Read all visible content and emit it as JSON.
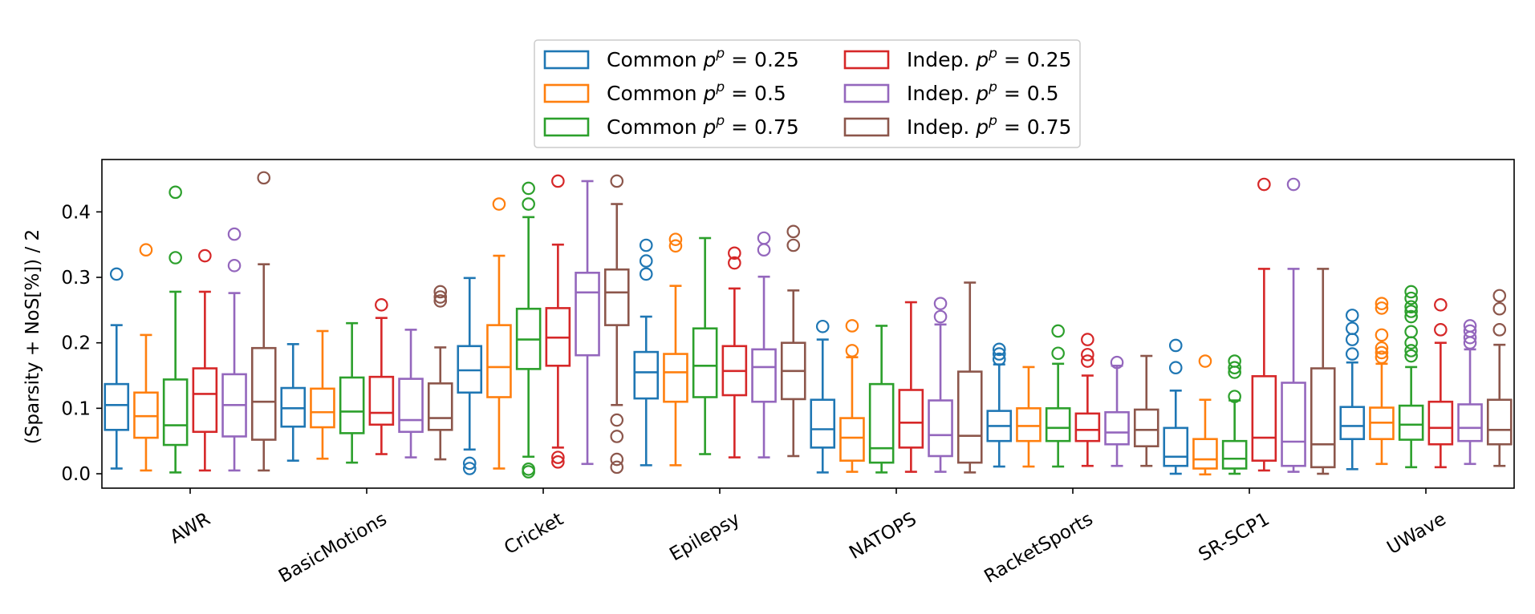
{
  "chart_data": {
    "type": "boxplot",
    "title": "",
    "xlabel": "",
    "ylabel": "(Sparsity + NoS[%]) / 2",
    "ylim": [
      -0.022,
      0.48
    ],
    "yticks": [
      0.0,
      0.1,
      0.2,
      0.3,
      0.4
    ],
    "ytick_labels": [
      "0.0",
      "0.1",
      "0.2",
      "0.3",
      "0.4"
    ],
    "legend_position": "upper center, outside top",
    "categories": [
      "AWR",
      "BasicMotions",
      "Cricket",
      "Epilepsy",
      "NATOPS",
      "RacketSports",
      "SR-SCP1",
      "UWave"
    ],
    "series": [
      {
        "name": "Common p^p = 0.25",
        "prefix": "Common",
        "pvalue": "0.25",
        "color": "#1f77b4",
        "boxes": [
          {
            "whislo": 0.008,
            "q1": 0.067,
            "med": 0.105,
            "q3": 0.137,
            "whishi": 0.227,
            "fliers": [
              0.305
            ]
          },
          {
            "whislo": 0.02,
            "q1": 0.072,
            "med": 0.1,
            "q3": 0.131,
            "whishi": 0.198,
            "fliers": []
          },
          {
            "whislo": 0.037,
            "q1": 0.124,
            "med": 0.158,
            "q3": 0.195,
            "whishi": 0.299,
            "fliers": [
              0.008,
              0.016
            ]
          },
          {
            "whislo": 0.013,
            "q1": 0.115,
            "med": 0.155,
            "q3": 0.186,
            "whishi": 0.24,
            "fliers": [
              0.305,
              0.325,
              0.349
            ]
          },
          {
            "whislo": 0.002,
            "q1": 0.04,
            "med": 0.068,
            "q3": 0.113,
            "whishi": 0.205,
            "fliers": [
              0.225
            ]
          },
          {
            "whislo": 0.011,
            "q1": 0.05,
            "med": 0.073,
            "q3": 0.096,
            "whishi": 0.167,
            "fliers": [
              0.175,
              0.183,
              0.19
            ]
          },
          {
            "whislo": 0.0,
            "q1": 0.012,
            "med": 0.026,
            "q3": 0.07,
            "whishi": 0.127,
            "fliers": [
              0.162,
              0.196
            ]
          },
          {
            "whislo": 0.007,
            "q1": 0.053,
            "med": 0.073,
            "q3": 0.102,
            "whishi": 0.17,
            "fliers": [
              0.183,
              0.205,
              0.222,
              0.242
            ]
          }
        ]
      },
      {
        "name": "Common p^p = 0.5",
        "prefix": "Common",
        "pvalue": "0.5",
        "color": "#ff7f0e",
        "boxes": [
          {
            "whislo": 0.005,
            "q1": 0.055,
            "med": 0.088,
            "q3": 0.124,
            "whishi": 0.212,
            "fliers": [
              0.342
            ]
          },
          {
            "whislo": 0.023,
            "q1": 0.071,
            "med": 0.094,
            "q3": 0.13,
            "whishi": 0.218,
            "fliers": []
          },
          {
            "whislo": 0.008,
            "q1": 0.117,
            "med": 0.163,
            "q3": 0.227,
            "whishi": 0.333,
            "fliers": [
              0.412
            ]
          },
          {
            "whislo": 0.013,
            "q1": 0.11,
            "med": 0.155,
            "q3": 0.183,
            "whishi": 0.287,
            "fliers": [
              0.348,
              0.358
            ]
          },
          {
            "whislo": 0.003,
            "q1": 0.02,
            "med": 0.055,
            "q3": 0.085,
            "whishi": 0.178,
            "fliers": [
              0.188,
              0.226
            ]
          },
          {
            "whislo": 0.011,
            "q1": 0.05,
            "med": 0.073,
            "q3": 0.1,
            "whishi": 0.163,
            "fliers": []
          },
          {
            "whislo": -0.001,
            "q1": 0.008,
            "med": 0.022,
            "q3": 0.053,
            "whishi": 0.113,
            "fliers": [
              0.172
            ]
          },
          {
            "whislo": 0.015,
            "q1": 0.053,
            "med": 0.078,
            "q3": 0.101,
            "whishi": 0.168,
            "fliers": [
              0.178,
              0.185,
              0.192,
              0.212,
              0.253,
              0.26
            ]
          }
        ]
      },
      {
        "name": "Common p^p = 0.75",
        "prefix": "Common",
        "pvalue": "0.75",
        "color": "#2ca02c",
        "boxes": [
          {
            "whislo": 0.002,
            "q1": 0.044,
            "med": 0.074,
            "q3": 0.144,
            "whishi": 0.278,
            "fliers": [
              0.33,
              0.43
            ]
          },
          {
            "whislo": 0.017,
            "q1": 0.062,
            "med": 0.095,
            "q3": 0.147,
            "whishi": 0.23,
            "fliers": []
          },
          {
            "whislo": 0.026,
            "q1": 0.16,
            "med": 0.205,
            "q3": 0.252,
            "whishi": 0.392,
            "fliers": [
              0.003,
              0.007,
              0.412,
              0.436
            ]
          },
          {
            "whislo": 0.03,
            "q1": 0.117,
            "med": 0.165,
            "q3": 0.222,
            "whishi": 0.36,
            "fliers": []
          },
          {
            "whislo": 0.002,
            "q1": 0.017,
            "med": 0.039,
            "q3": 0.137,
            "whishi": 0.226,
            "fliers": []
          },
          {
            "whislo": 0.011,
            "q1": 0.05,
            "med": 0.07,
            "q3": 0.1,
            "whishi": 0.168,
            "fliers": [
              0.184,
              0.218
            ]
          },
          {
            "whislo": 0.0,
            "q1": 0.008,
            "med": 0.023,
            "q3": 0.05,
            "whishi": 0.112,
            "fliers": [
              0.118,
              0.155,
              0.162,
              0.172
            ]
          },
          {
            "whislo": 0.01,
            "q1": 0.052,
            "med": 0.075,
            "q3": 0.104,
            "whishi": 0.163,
            "fliers": [
              0.18,
              0.188,
              0.2,
              0.217,
              0.24,
              0.248,
              0.255,
              0.268,
              0.278
            ]
          }
        ]
      },
      {
        "name": "Indep. p^p = 0.25",
        "prefix": "Indep.",
        "pvalue": "0.25",
        "color": "#d62728",
        "boxes": [
          {
            "whislo": 0.005,
            "q1": 0.064,
            "med": 0.122,
            "q3": 0.161,
            "whishi": 0.278,
            "fliers": [
              0.333
            ]
          },
          {
            "whislo": 0.03,
            "q1": 0.075,
            "med": 0.093,
            "q3": 0.148,
            "whishi": 0.238,
            "fliers": [
              0.258
            ]
          },
          {
            "whislo": 0.04,
            "q1": 0.165,
            "med": 0.208,
            "q3": 0.253,
            "whishi": 0.35,
            "fliers": [
              0.018,
              0.025,
              0.447
            ]
          },
          {
            "whislo": 0.025,
            "q1": 0.12,
            "med": 0.157,
            "q3": 0.195,
            "whishi": 0.283,
            "fliers": [
              0.322,
              0.337
            ]
          },
          {
            "whislo": 0.003,
            "q1": 0.04,
            "med": 0.078,
            "q3": 0.128,
            "whishi": 0.262,
            "fliers": []
          },
          {
            "whislo": 0.012,
            "q1": 0.05,
            "med": 0.067,
            "q3": 0.092,
            "whishi": 0.15,
            "fliers": [
              0.172,
              0.182,
              0.205
            ]
          },
          {
            "whislo": 0.005,
            "q1": 0.02,
            "med": 0.055,
            "q3": 0.149,
            "whishi": 0.313,
            "fliers": [
              0.442
            ]
          },
          {
            "whislo": 0.01,
            "q1": 0.045,
            "med": 0.07,
            "q3": 0.11,
            "whishi": 0.2,
            "fliers": [
              0.22,
              0.258
            ]
          }
        ]
      },
      {
        "name": "Indep. p^p = 0.5",
        "prefix": "Indep.",
        "pvalue": "0.5",
        "color": "#9467bd",
        "boxes": [
          {
            "whislo": 0.005,
            "q1": 0.057,
            "med": 0.105,
            "q3": 0.152,
            "whishi": 0.276,
            "fliers": [
              0.318,
              0.366
            ]
          },
          {
            "whislo": 0.025,
            "q1": 0.064,
            "med": 0.082,
            "q3": 0.145,
            "whishi": 0.22,
            "fliers": []
          },
          {
            "whislo": 0.015,
            "q1": 0.181,
            "med": 0.277,
            "q3": 0.307,
            "whishi": 0.447,
            "fliers": []
          },
          {
            "whislo": 0.025,
            "q1": 0.11,
            "med": 0.163,
            "q3": 0.19,
            "whishi": 0.301,
            "fliers": [
              0.342,
              0.36
            ]
          },
          {
            "whislo": 0.003,
            "q1": 0.027,
            "med": 0.059,
            "q3": 0.112,
            "whishi": 0.228,
            "fliers": [
              0.24,
              0.26
            ]
          },
          {
            "whislo": 0.012,
            "q1": 0.045,
            "med": 0.063,
            "q3": 0.094,
            "whishi": 0.165,
            "fliers": [
              0.17
            ]
          },
          {
            "whislo": 0.003,
            "q1": 0.012,
            "med": 0.049,
            "q3": 0.139,
            "whishi": 0.313,
            "fliers": [
              0.442
            ]
          },
          {
            "whislo": 0.015,
            "q1": 0.05,
            "med": 0.07,
            "q3": 0.106,
            "whishi": 0.19,
            "fliers": [
              0.2,
              0.208,
              0.218,
              0.226
            ]
          }
        ]
      },
      {
        "name": "Indep. p^p = 0.75",
        "prefix": "Indep.",
        "pvalue": "0.75",
        "color": "#8c564b",
        "boxes": [
          {
            "whislo": 0.005,
            "q1": 0.052,
            "med": 0.11,
            "q3": 0.192,
            "whishi": 0.32,
            "fliers": [
              0.452
            ]
          },
          {
            "whislo": 0.022,
            "q1": 0.067,
            "med": 0.085,
            "q3": 0.138,
            "whishi": 0.193,
            "fliers": [
              0.264,
              0.27,
              0.278
            ]
          },
          {
            "whislo": 0.105,
            "q1": 0.227,
            "med": 0.277,
            "q3": 0.312,
            "whishi": 0.412,
            "fliers": [
              0.01,
              0.022,
              0.057,
              0.082,
              0.447
            ]
          },
          {
            "whislo": 0.027,
            "q1": 0.114,
            "med": 0.157,
            "q3": 0.2,
            "whishi": 0.28,
            "fliers": [
              0.349,
              0.37
            ]
          },
          {
            "whislo": 0.002,
            "q1": 0.017,
            "med": 0.058,
            "q3": 0.156,
            "whishi": 0.292,
            "fliers": []
          },
          {
            "whislo": 0.012,
            "q1": 0.042,
            "med": 0.067,
            "q3": 0.098,
            "whishi": 0.18,
            "fliers": []
          },
          {
            "whislo": 0.0,
            "q1": 0.01,
            "med": 0.045,
            "q3": 0.161,
            "whishi": 0.313,
            "fliers": []
          },
          {
            "whislo": 0.012,
            "q1": 0.045,
            "med": 0.067,
            "q3": 0.113,
            "whishi": 0.197,
            "fliers": [
              0.22,
              0.252,
              0.272
            ]
          }
        ]
      }
    ]
  }
}
